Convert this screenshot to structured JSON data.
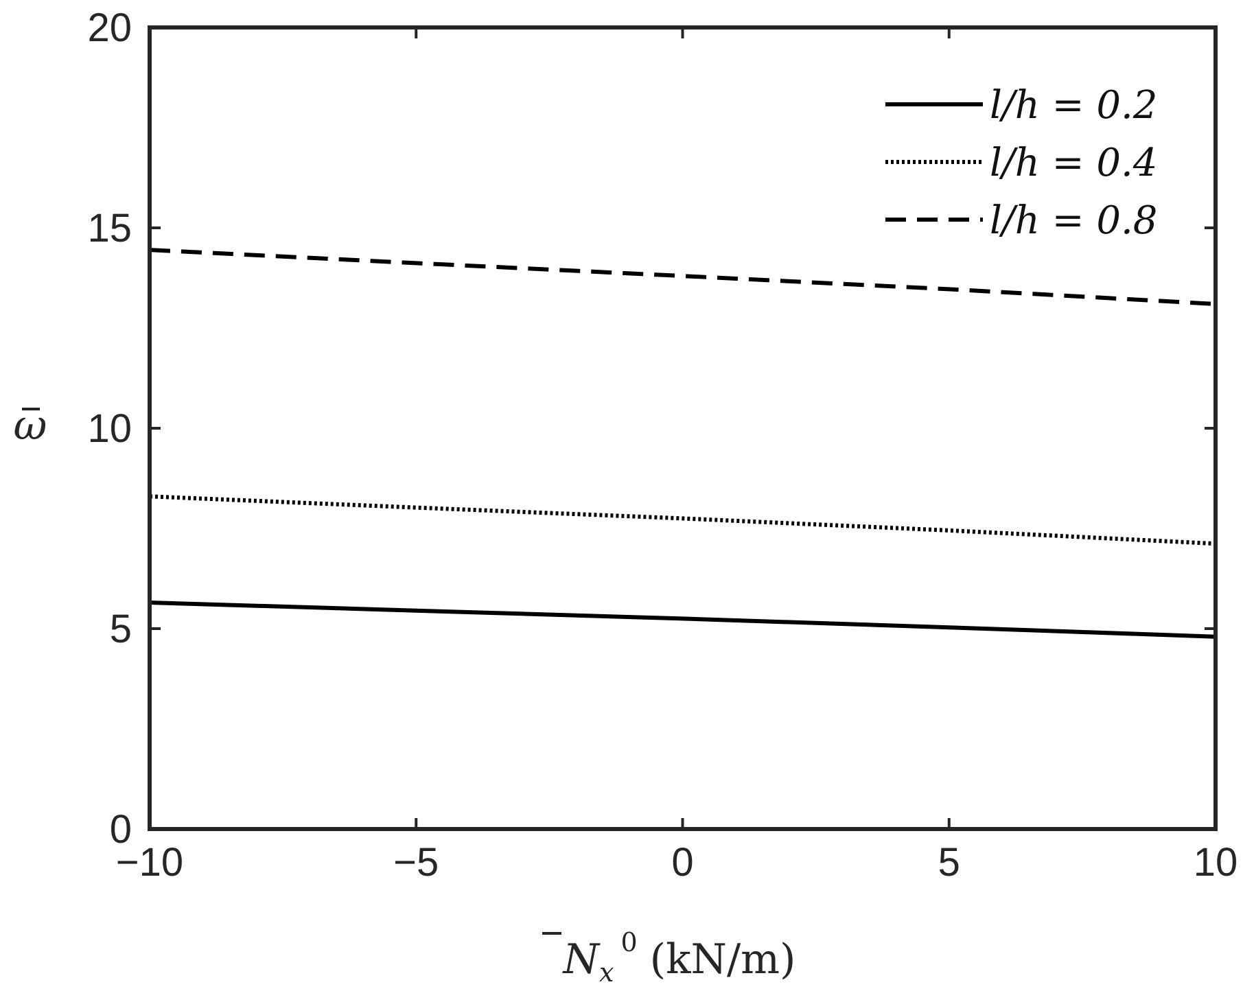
{
  "chart_data": {
    "type": "line",
    "xlabel": "N̄x⁰ (kN/m)",
    "ylabel": "ω̄",
    "xlim": [
      -10,
      10
    ],
    "ylim": [
      0,
      20
    ],
    "xticks": [
      -10,
      -5,
      0,
      5,
      10
    ],
    "xtick_labels": [
      "−10",
      "−5",
      "0",
      "5",
      "10"
    ],
    "yticks": [
      0,
      5,
      10,
      15,
      20
    ],
    "ytick_labels": [
      "0",
      "5",
      "10",
      "15",
      "20"
    ],
    "grid": false,
    "legend_position": "top-right",
    "series": [
      {
        "name": "l/h = 0.2",
        "style": "solid",
        "color": "#000000",
        "x": [
          -10,
          -5,
          0,
          5,
          10
        ],
        "y": [
          5.65,
          5.45,
          5.25,
          5.03,
          4.8
        ]
      },
      {
        "name": "l/h = 0.4",
        "style": "dotted",
        "color": "#000000",
        "x": [
          -10,
          -5,
          0,
          5,
          10
        ],
        "y": [
          8.3,
          8.02,
          7.75,
          7.45,
          7.12
        ]
      },
      {
        "name": "l/h = 0.8",
        "style": "dashed",
        "color": "#000000",
        "x": [
          -10,
          -5,
          0,
          5,
          10
        ],
        "y": [
          14.45,
          14.12,
          13.8,
          13.47,
          13.1
        ]
      }
    ]
  }
}
